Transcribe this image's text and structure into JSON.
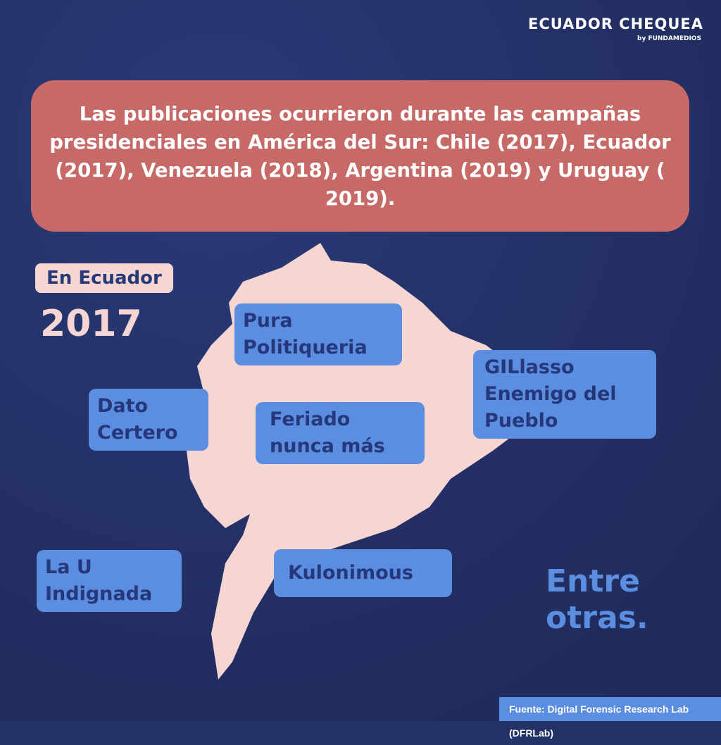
{
  "brand": {
    "name": "ECUADOR CHEQUEA",
    "sub": "by FUNDAMEDIOS"
  },
  "headline": "Las publicaciones ocurrieron durante las campañas presidenciales en América del Sur: Chile (2017), Ecuador (2017), Venezuela (2018), Argentina (2019) y Uruguay ( 2019).",
  "tag": "En Ecuador",
  "year": "2017",
  "pages": [
    "Pura Politiqueria",
    "Dato Certero",
    "Feriado nunca más",
    "GILlasso Enemigo del Pueblo",
    "La U Indignada",
    "Kulonimous"
  ],
  "closing": "Entre otras.",
  "source": "Fuente: Digital Forensic Research Lab (DFRLab)",
  "colors": {
    "background": "#243166",
    "headline_box": "#c76967",
    "map": "#f6d6d2",
    "label": "#5b8ee0",
    "label_text": "#26377a"
  }
}
